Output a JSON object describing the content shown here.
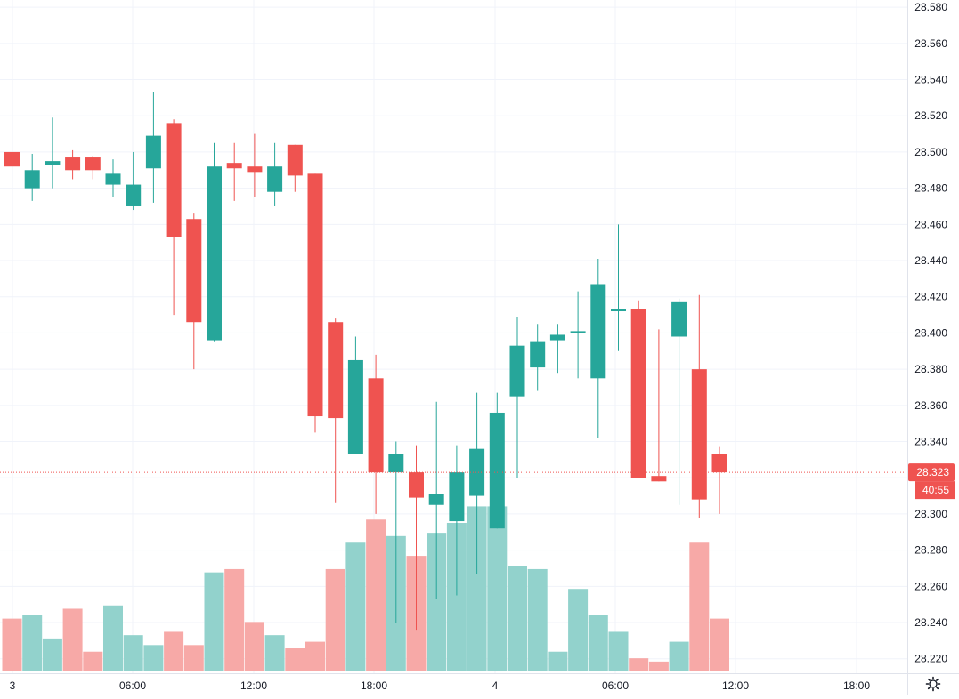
{
  "chart_data": {
    "type": "candlestick",
    "x_axis_ticks": [
      "3",
      "06:00",
      "12:00",
      "18:00",
      "4",
      "06:00",
      "12:00",
      "18:00"
    ],
    "y_axis_ticks": [
      "28.580",
      "28.560",
      "28.540",
      "28.520",
      "28.500",
      "28.480",
      "28.460",
      "28.440",
      "28.420",
      "28.400",
      "28.380",
      "28.360",
      "28.340",
      "28.320",
      "28.300",
      "28.280",
      "28.260",
      "28.240",
      "28.220"
    ],
    "ylim": [
      28.212,
      28.584
    ],
    "grid": true,
    "last_price_label": "28.323",
    "countdown_label": "40:55",
    "colors": {
      "up": "#26a69a",
      "down": "#ef5350",
      "up_volume": "#92d2cc",
      "down_volume": "#f7a9a7",
      "grid": "#f0f3fa",
      "axis_line": "#e0e3eb"
    },
    "candles": [
      {
        "o": 28.5,
        "h": 28.508,
        "l": 28.48,
        "c": 28.492
      },
      {
        "o": 28.48,
        "h": 28.499,
        "l": 28.473,
        "c": 28.49
      },
      {
        "o": 28.493,
        "h": 28.519,
        "l": 28.48,
        "c": 28.495
      },
      {
        "o": 28.497,
        "h": 28.501,
        "l": 28.485,
        "c": 28.49
      },
      {
        "o": 28.497,
        "h": 28.498,
        "l": 28.485,
        "c": 28.49
      },
      {
        "o": 28.482,
        "h": 28.496,
        "l": 28.475,
        "c": 28.488
      },
      {
        "o": 28.47,
        "h": 28.5,
        "l": 28.468,
        "c": 28.482
      },
      {
        "o": 28.491,
        "h": 28.533,
        "l": 28.472,
        "c": 28.509
      },
      {
        "o": 28.516,
        "h": 28.518,
        "l": 28.41,
        "c": 28.453
      },
      {
        "o": 28.463,
        "h": 28.466,
        "l": 28.38,
        "c": 28.406
      },
      {
        "o": 28.396,
        "h": 28.505,
        "l": 28.395,
        "c": 28.492
      },
      {
        "o": 28.494,
        "h": 28.505,
        "l": 28.473,
        "c": 28.491
      },
      {
        "o": 28.492,
        "h": 28.51,
        "l": 28.475,
        "c": 28.489
      },
      {
        "o": 28.478,
        "h": 28.505,
        "l": 28.47,
        "c": 28.492
      },
      {
        "o": 28.504,
        "h": 28.504,
        "l": 28.478,
        "c": 28.487
      },
      {
        "o": 28.488,
        "h": 28.488,
        "l": 28.345,
        "c": 28.354
      },
      {
        "o": 28.406,
        "h": 28.408,
        "l": 28.306,
        "c": 28.353
      },
      {
        "o": 28.333,
        "h": 28.398,
        "l": 28.333,
        "c": 28.385
      },
      {
        "o": 28.375,
        "h": 28.388,
        "l": 28.3,
        "c": 28.323
      },
      {
        "o": 28.323,
        "h": 28.34,
        "l": 28.24,
        "c": 28.333
      },
      {
        "o": 28.323,
        "h": 28.338,
        "l": 28.236,
        "c": 28.309
      },
      {
        "o": 28.305,
        "h": 28.362,
        "l": 28.253,
        "c": 28.311
      },
      {
        "o": 28.296,
        "h": 28.338,
        "l": 28.255,
        "c": 28.323
      },
      {
        "o": 28.31,
        "h": 28.367,
        "l": 28.267,
        "c": 28.336
      },
      {
        "o": 28.292,
        "h": 28.367,
        "l": 28.292,
        "c": 28.356
      },
      {
        "o": 28.365,
        "h": 28.409,
        "l": 28.32,
        "c": 28.393
      },
      {
        "o": 28.381,
        "h": 28.405,
        "l": 28.368,
        "c": 28.395
      },
      {
        "o": 28.396,
        "h": 28.405,
        "l": 28.378,
        "c": 28.399
      },
      {
        "o": 28.4,
        "h": 28.423,
        "l": 28.375,
        "c": 28.401
      },
      {
        "o": 28.375,
        "h": 28.441,
        "l": 28.342,
        "c": 28.427
      },
      {
        "o": 28.412,
        "h": 28.46,
        "l": 28.39,
        "c": 28.413
      },
      {
        "o": 28.413,
        "h": 28.418,
        "l": 28.32,
        "c": 28.32
      },
      {
        "o": 28.321,
        "h": 28.402,
        "l": 28.318,
        "c": 28.318
      },
      {
        "o": 28.398,
        "h": 28.419,
        "l": 28.305,
        "c": 28.417
      },
      {
        "o": 28.38,
        "h": 28.421,
        "l": 28.298,
        "c": 28.308
      },
      {
        "o": 28.333,
        "h": 28.337,
        "l": 28.3,
        "c": 28.323
      }
    ],
    "volumes": [
      16,
      17,
      10,
      19,
      6,
      20,
      11,
      8,
      12,
      8,
      30,
      31,
      15,
      11,
      7,
      9,
      31,
      39,
      46,
      41,
      35,
      42,
      45,
      50,
      50,
      32,
      31,
      6,
      25,
      17,
      12,
      4,
      3,
      9,
      39,
      16
    ]
  }
}
